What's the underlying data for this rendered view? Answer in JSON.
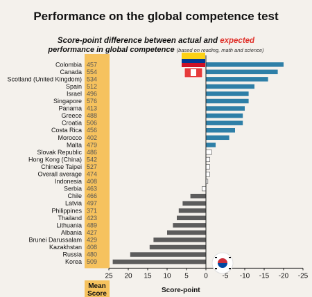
{
  "title": "Performance on the global competence test",
  "subtitle": {
    "line1_prefix": "Score-point difference between actual and ",
    "line1_highlight": "expected",
    "line2": "performance in global competence",
    "line2_note": "(based on reading, math and science)"
  },
  "labels": {
    "mean_score": "Mean Score",
    "x_axis": "Score-point"
  },
  "colors": {
    "positive_bar": "#2e7fa7",
    "negative_bar": "#5c5c5c",
    "mean_column": "#f6c25e",
    "near_zero_bar": "#ffffff",
    "background": "#f4f1ec",
    "highlight": "#e0312a"
  },
  "chart_data": {
    "type": "bar",
    "orientation": "horizontal",
    "x_reversed": true,
    "xlim": [
      25,
      -25
    ],
    "xticks": [
      "25",
      "20",
      "15",
      "10",
      "5",
      "0",
      "-5",
      "-10",
      "-15",
      "-20",
      "-25"
    ],
    "xtick_values": [
      25,
      20,
      15,
      10,
      5,
      0,
      -5,
      -10,
      -15,
      -20,
      -25
    ],
    "xlabel": "Score-point",
    "categories": [
      "Colombia",
      "Canada",
      "Scotland (United Kingdom)",
      "Spain",
      "Israel",
      "Singapore",
      "Panama",
      "Greece",
      "Croatia",
      "Costa Rica",
      "Morocco",
      "Malta",
      "Slovak Republic",
      "Hong Kong (China)",
      "Chinese Taipei",
      "Overall average",
      "Indonesia",
      "Serbia",
      "Chile",
      "Latvia",
      "Philippines",
      "Thailand",
      "Lithuania",
      "Albania",
      "Brunei Darussalam",
      "Kazakhstan",
      "Russia",
      "Korea"
    ],
    "mean_scores": [
      "457",
      "554",
      "534",
      "512",
      "496",
      "576",
      "413",
      "488",
      "506",
      "456",
      "402",
      "479",
      "486",
      "542",
      "527",
      "474",
      "408",
      "463",
      "466",
      "497",
      "371",
      "423",
      "489",
      "427",
      "429",
      "408",
      "480",
      "509"
    ],
    "values": [
      -20,
      -18.5,
      -16,
      -12.5,
      -11,
      -11,
      -10,
      -9.5,
      -9.5,
      -7.5,
      -6,
      -2.5,
      -1.5,
      -1,
      -1,
      -1,
      -0.5,
      1,
      4,
      6,
      7,
      7.5,
      8.5,
      10,
      13.5,
      14.5,
      19.5,
      24
    ],
    "grid": false,
    "legend": "none",
    "annotations": [
      "colombia-flag",
      "korea-flag"
    ]
  }
}
